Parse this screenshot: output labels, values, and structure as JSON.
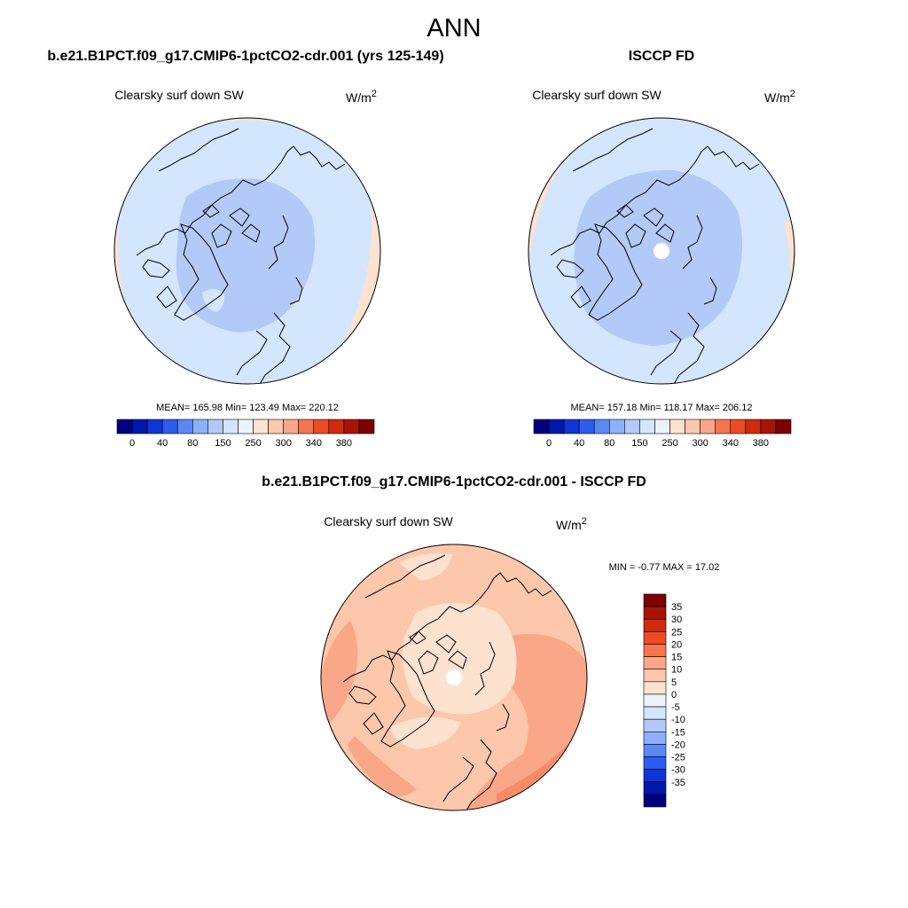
{
  "figure": {
    "title": "ANN",
    "colors": {
      "light_blue": "#d3e6fd",
      "mid_blue": "#b3c9f8",
      "peach": "#fde2d0",
      "salmon_light": "#fcc7ab",
      "salmon_mid": "#f9a788",
      "no_data": "#ffffff",
      "coast": "#000000"
    }
  },
  "panels": [
    {
      "header": "b.e21.B1PCT.f09_g17.CMIP6-1pctCO2-cdr.001 (yrs 125-149)",
      "variable": "Clearsky surf down SW",
      "units_base": "W/m",
      "units_exp": "2",
      "stats": {
        "label": "MEAN= 165.98  Min= 123.49  Max= 220.12",
        "mean": 165.98,
        "min": 123.49,
        "max": 220.12
      }
    },
    {
      "header": "ISCCP FD",
      "variable": "Clearsky surf down SW",
      "units_base": "W/m",
      "units_exp": "2",
      "stats": {
        "label": "MEAN= 157.18  Min= 118.17  Max= 206.12",
        "mean": 157.18,
        "min": 118.17,
        "max": 206.12
      }
    }
  ],
  "diff_panel": {
    "header": "b.e21.B1PCT.f09_g17.CMIP6-1pctCO2-cdr.001 - ISCCP FD",
    "variable": "Clearsky surf down SW",
    "units_base": "W/m",
    "units_exp": "2",
    "minmax": {
      "label": "MIN =  -0.77 MAX =  17.02",
      "min": -0.77,
      "max": 17.02
    }
  },
  "colorbar_main": {
    "colors": [
      "#00007f",
      "#0017ad",
      "#0f35d8",
      "#2c5cf0",
      "#5b89f4",
      "#8cb1f8",
      "#b3c9f8",
      "#d3e6fd",
      "#ecf3fe",
      "#fde2d0",
      "#fcc7ab",
      "#f9a788",
      "#f5754f",
      "#ec4b25",
      "#cf2b0c",
      "#a71406",
      "#7f0000"
    ],
    "ticks": [
      "0",
      "40",
      "80",
      "150",
      "250",
      "300",
      "340",
      "380"
    ],
    "tick_boundaries": [
      1,
      3,
      5,
      7,
      9,
      11,
      13,
      15
    ]
  },
  "colorbar_diff": {
    "colors": [
      "#00007f",
      "#0017ad",
      "#0f35d8",
      "#2c5cf0",
      "#5b89f4",
      "#8cb1f8",
      "#b3c9f8",
      "#d3e6fd",
      "#ecf3fe",
      "#fde2d0",
      "#fcc7ab",
      "#f9a788",
      "#f5754f",
      "#ec4b25",
      "#cf2b0c",
      "#a71406",
      "#7f0000"
    ],
    "labels": [
      "35",
      "30",
      "25",
      "20",
      "15",
      "10",
      "5",
      "0",
      "-5",
      "-10",
      "-15",
      "-20",
      "-25",
      "-30",
      "-35"
    ]
  }
}
